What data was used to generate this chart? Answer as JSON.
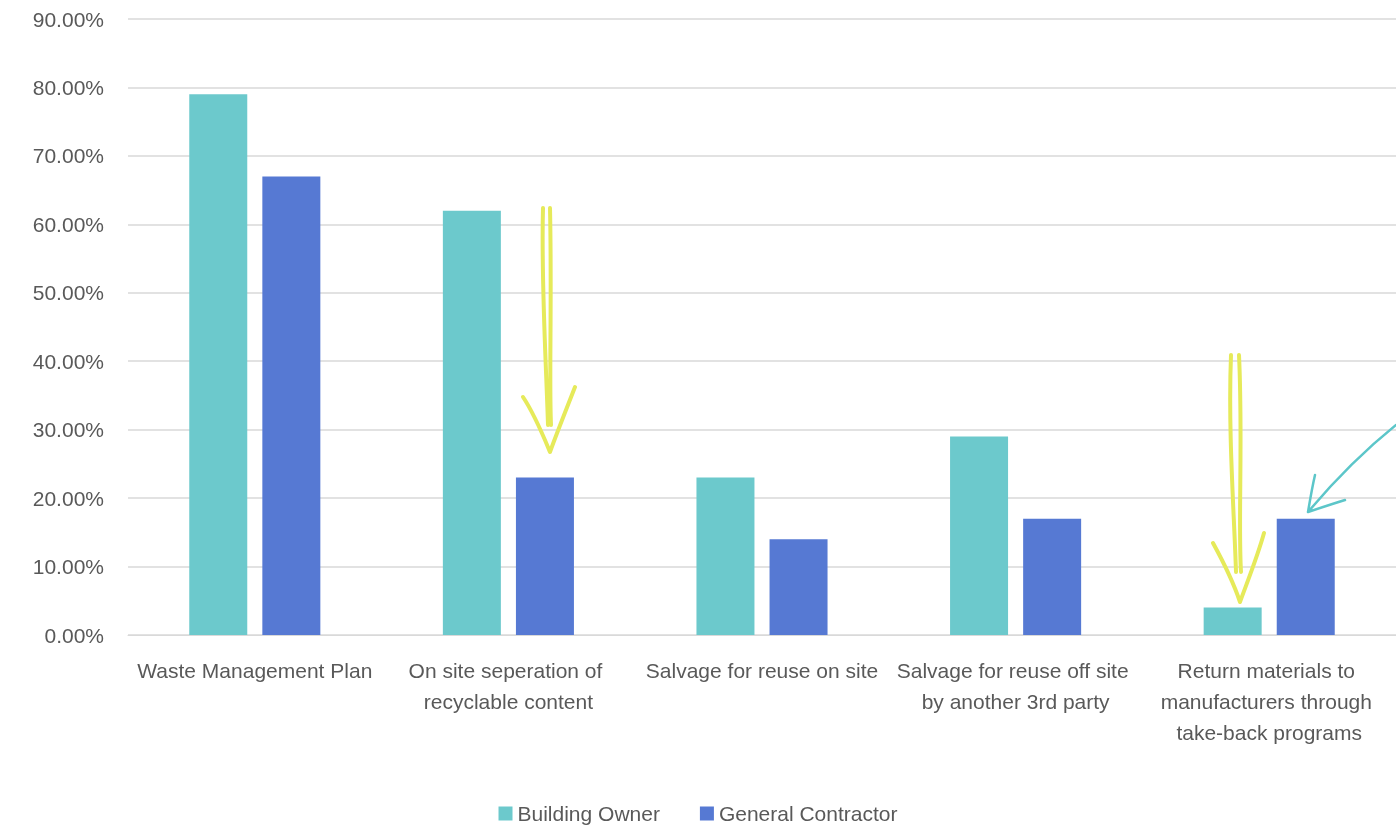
{
  "chart_data": {
    "type": "bar",
    "categories": [
      "Waste Management Plan",
      "On site seperation of recyclable content",
      "Salvage for reuse on site",
      "Salvage for reuse off site by another 3rd party",
      "Return materials to manufacturers through take-back programs"
    ],
    "series": [
      {
        "name": "Building Owner",
        "color": "#6cc9cc",
        "values": [
          79,
          62,
          23,
          29,
          4
        ]
      },
      {
        "name": "General Contractor",
        "color": "#5679d3",
        "values": [
          67,
          23,
          14,
          17,
          17
        ]
      }
    ],
    "ylim": [
      0,
      90
    ],
    "yticks": [
      {
        "value": 0,
        "label": "0.00%"
      },
      {
        "value": 10,
        "label": "10.00%"
      },
      {
        "value": 20,
        "label": "20.00%"
      },
      {
        "value": 30,
        "label": "30.00%"
      },
      {
        "value": 40,
        "label": "40.00%"
      },
      {
        "value": 50,
        "label": "50.00%"
      },
      {
        "value": 60,
        "label": "60.00%"
      },
      {
        "value": 70,
        "label": "70.00%"
      },
      {
        "value": 80,
        "label": "80.00%"
      },
      {
        "value": 90,
        "label": "90.00%"
      }
    ],
    "grid": "y",
    "legend": "bottom"
  }
}
